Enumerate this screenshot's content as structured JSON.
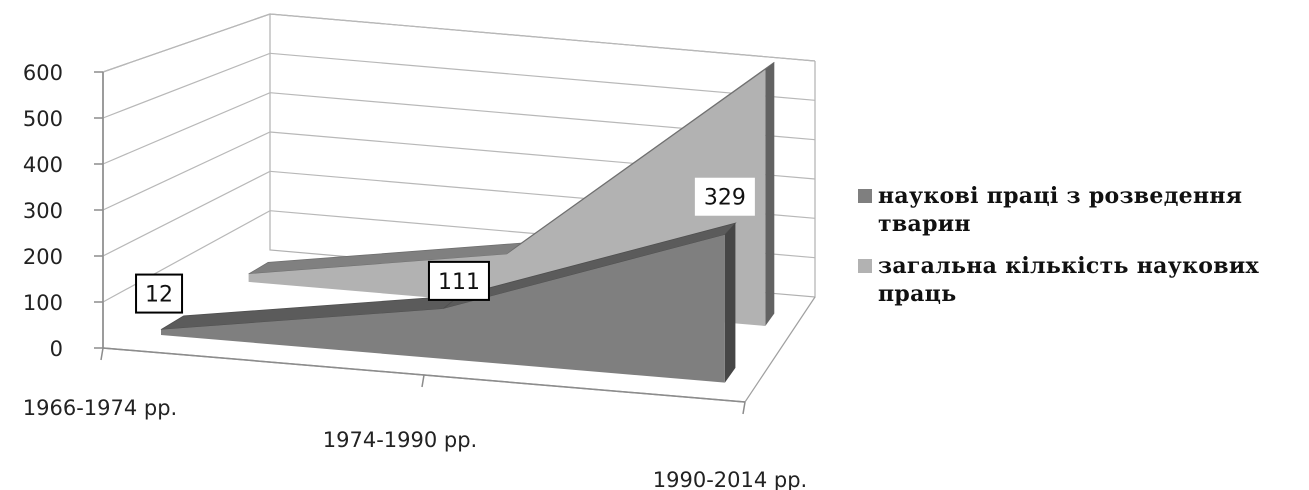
{
  "chart_data": {
    "type": "area",
    "variant": "3d",
    "categories": [
      "1966-1974 рр.",
      "1974-1990 рр.",
      "1990-2014 рр."
    ],
    "series": [
      {
        "name": "наукові праці з розведення тварин",
        "values": [
          12,
          111,
          329
        ],
        "color": "#7f7f7f",
        "data_labels": true
      },
      {
        "name": "загальна кількість наукових праць",
        "values": [
          19,
          120,
          620
        ],
        "color": "#b2b2b2",
        "data_labels": false
      }
    ],
    "yticks": [
      0,
      100,
      200,
      300,
      400,
      500,
      600
    ],
    "ylim": [
      0,
      600
    ],
    "grid": true,
    "legend_position": "right"
  }
}
